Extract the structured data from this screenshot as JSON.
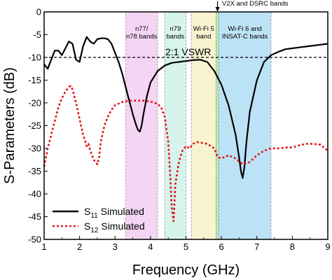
{
  "chart_data": {
    "type": "line",
    "xlabel": "Frequency (GHz)",
    "ylabel": "S-Parameters (dB)",
    "xlim": [
      1,
      9
    ],
    "ylim": [
      -50,
      0
    ],
    "xticks": [
      "1",
      "2",
      "3",
      "4",
      "5",
      "6",
      "7",
      "8",
      "9"
    ],
    "yticks": [
      "0",
      "-5",
      "-10",
      "-15",
      "-20",
      "-25",
      "-30",
      "-35",
      "-40",
      "-45",
      "-50"
    ],
    "bands": [
      {
        "lines": [
          "n77/",
          "n78 bands"
        ],
        "x_start": 3.3,
        "x_end": 4.2,
        "color": "#f0c8f0"
      },
      {
        "lines": [
          "n79",
          "bands"
        ],
        "x_start": 4.4,
        "x_end": 5.0,
        "color": "#c8f0e6"
      },
      {
        "lines": [
          "Wi-Fi 5",
          "band"
        ],
        "x_start": 5.15,
        "x_end": 5.85,
        "color": "#f5f0c0"
      },
      {
        "lines": [
          "V2X and DSRC bands"
        ],
        "x_start": 5.85,
        "x_end": 5.925,
        "color": "#9ce69c"
      },
      {
        "lines": [
          "Wi-Fi 6 and",
          "INSAT-C bands"
        ],
        "x_start": 5.925,
        "x_end": 7.4,
        "color": "#a6d8f2"
      }
    ],
    "reference_line": {
      "y": -10,
      "label": "2:1 VSWR"
    },
    "series": [
      {
        "name_main": "S",
        "name_sub": "11",
        "name_suffix": " Simulated",
        "color": "#000000",
        "style": "solid",
        "x": [
          1.0,
          1.1,
          1.2,
          1.3,
          1.4,
          1.5,
          1.6,
          1.7,
          1.8,
          1.9,
          2.0,
          2.1,
          2.2,
          2.3,
          2.4,
          2.5,
          2.6,
          2.7,
          2.8,
          2.9,
          3.0,
          3.1,
          3.2,
          3.3,
          3.4,
          3.5,
          3.6,
          3.65,
          3.7,
          3.75,
          3.8,
          3.9,
          4.0,
          4.2,
          4.4,
          4.6,
          4.8,
          5.0,
          5.2,
          5.4,
          5.6,
          5.8,
          6.0,
          6.2,
          6.4,
          6.5,
          6.55,
          6.6,
          6.65,
          6.7,
          6.8,
          7.0,
          7.2,
          7.4,
          7.6,
          7.8,
          8.0,
          8.2,
          8.4,
          8.6,
          8.8,
          9.0
        ],
        "y": [
          -11.5,
          -12.5,
          -10.5,
          -8.5,
          -8.5,
          -9.5,
          -8.0,
          -6.5,
          -7.0,
          -10.5,
          -11.0,
          -7.5,
          -5.5,
          -6.5,
          -7.0,
          -6.0,
          -5.8,
          -5.8,
          -6.0,
          -7.0,
          -9.0,
          -11.0,
          -13.5,
          -16.5,
          -19.5,
          -22.5,
          -25.0,
          -26.0,
          -26.3,
          -25.0,
          -22.5,
          -18.5,
          -15.5,
          -13.0,
          -11.8,
          -11.2,
          -11.0,
          -10.8,
          -10.6,
          -10.5,
          -11.0,
          -13.0,
          -16.0,
          -20.5,
          -27.0,
          -32.0,
          -35.0,
          -36.5,
          -34.0,
          -29.0,
          -22.0,
          -15.0,
          -11.0,
          -9.5,
          -8.8,
          -8.2,
          -8.0,
          -7.8,
          -7.6,
          -7.4,
          -7.2,
          -7.0
        ]
      },
      {
        "name_main": "S",
        "name_sub": "12",
        "name_suffix": " Simulated",
        "color": "#e0181c",
        "style": "dotted",
        "x": [
          1.0,
          1.1,
          1.2,
          1.3,
          1.4,
          1.5,
          1.6,
          1.7,
          1.75,
          1.8,
          1.9,
          2.0,
          2.1,
          2.2,
          2.25,
          2.3,
          2.4,
          2.5,
          2.55,
          2.6,
          2.7,
          2.8,
          2.9,
          3.0,
          3.2,
          3.4,
          3.6,
          3.8,
          4.0,
          4.2,
          4.3,
          4.4,
          4.5,
          4.55,
          4.6,
          4.65,
          4.7,
          4.8,
          4.9,
          5.0,
          5.1,
          5.2,
          5.3,
          5.4,
          5.6,
          5.8,
          5.9,
          6.0,
          6.2,
          6.4,
          6.6,
          6.8,
          7.0,
          7.2,
          7.4,
          7.6,
          7.8,
          8.0,
          8.2,
          8.4,
          8.6,
          8.8,
          9.0
        ],
        "y": [
          -34.0,
          -30.0,
          -27.0,
          -24.0,
          -21.0,
          -19.0,
          -17.5,
          -16.5,
          -16.3,
          -17.0,
          -20.0,
          -23.5,
          -27.0,
          -29.5,
          -29.0,
          -30.5,
          -32.5,
          -33.5,
          -32.0,
          -28.5,
          -25.0,
          -23.0,
          -21.5,
          -20.5,
          -19.8,
          -19.5,
          -19.5,
          -19.5,
          -19.7,
          -20.2,
          -21.0,
          -23.0,
          -28.5,
          -35.0,
          -43.0,
          -46.0,
          -38.0,
          -33.0,
          -30.5,
          -29.5,
          -30.0,
          -29.0,
          -28.6,
          -28.7,
          -29.0,
          -30.0,
          -32.0,
          -32.2,
          -31.5,
          -32.2,
          -33.5,
          -33.0,
          -31.5,
          -30.5,
          -30.0,
          -30.0,
          -29.8,
          -29.8,
          -29.3,
          -29.0,
          -29.0,
          -29.2,
          -30.5
        ]
      }
    ]
  }
}
